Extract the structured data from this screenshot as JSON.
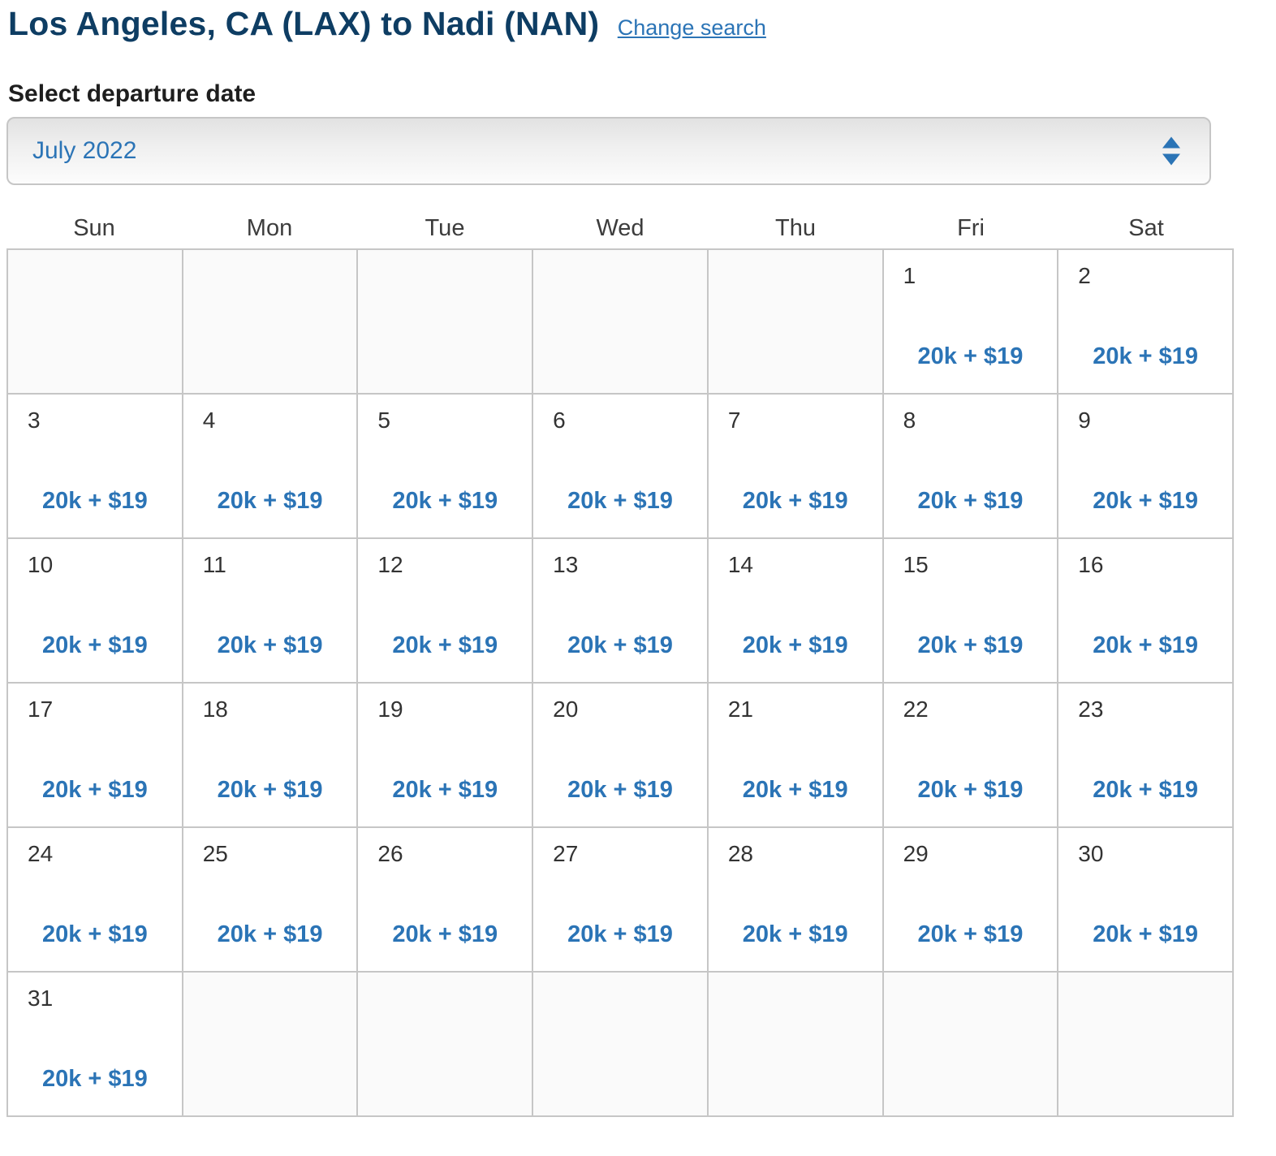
{
  "header": {
    "title": "Los Angeles, CA (LAX) to Nadi (NAN)",
    "change_search_label": "Change search"
  },
  "date_picker": {
    "label": "Select departure date",
    "selected_month": "July 2022"
  },
  "calendar": {
    "weekday_headers": [
      "Sun",
      "Mon",
      "Tue",
      "Wed",
      "Thu",
      "Fri",
      "Sat"
    ],
    "weeks": [
      [
        null,
        null,
        null,
        null,
        null,
        {
          "day": "1",
          "price": "20k + $19"
        },
        {
          "day": "2",
          "price": "20k + $19"
        }
      ],
      [
        {
          "day": "3",
          "price": "20k + $19"
        },
        {
          "day": "4",
          "price": "20k + $19"
        },
        {
          "day": "5",
          "price": "20k + $19"
        },
        {
          "day": "6",
          "price": "20k + $19"
        },
        {
          "day": "7",
          "price": "20k + $19"
        },
        {
          "day": "8",
          "price": "20k + $19"
        },
        {
          "day": "9",
          "price": "20k + $19"
        }
      ],
      [
        {
          "day": "10",
          "price": "20k + $19"
        },
        {
          "day": "11",
          "price": "20k + $19"
        },
        {
          "day": "12",
          "price": "20k + $19"
        },
        {
          "day": "13",
          "price": "20k + $19"
        },
        {
          "day": "14",
          "price": "20k + $19"
        },
        {
          "day": "15",
          "price": "20k + $19"
        },
        {
          "day": "16",
          "price": "20k + $19"
        }
      ],
      [
        {
          "day": "17",
          "price": "20k + $19"
        },
        {
          "day": "18",
          "price": "20k + $19"
        },
        {
          "day": "19",
          "price": "20k + $19"
        },
        {
          "day": "20",
          "price": "20k + $19"
        },
        {
          "day": "21",
          "price": "20k + $19"
        },
        {
          "day": "22",
          "price": "20k + $19"
        },
        {
          "day": "23",
          "price": "20k + $19"
        }
      ],
      [
        {
          "day": "24",
          "price": "20k + $19"
        },
        {
          "day": "25",
          "price": "20k + $19"
        },
        {
          "day": "26",
          "price": "20k + $19"
        },
        {
          "day": "27",
          "price": "20k + $19"
        },
        {
          "day": "28",
          "price": "20k + $19"
        },
        {
          "day": "29",
          "price": "20k + $19"
        },
        {
          "day": "30",
          "price": "20k + $19"
        }
      ],
      [
        {
          "day": "31",
          "price": "20k + $19"
        },
        null,
        null,
        null,
        null,
        null,
        null
      ]
    ]
  },
  "colors": {
    "title_navy": "#0e3d63",
    "link_blue": "#2b74b6",
    "price_blue": "#2b74b6",
    "border_gray": "#c6c6c6",
    "empty_cell_bg": "#fafafa",
    "day_number_gray": "#333333",
    "weekday_header_gray": "#3c3c3c"
  }
}
